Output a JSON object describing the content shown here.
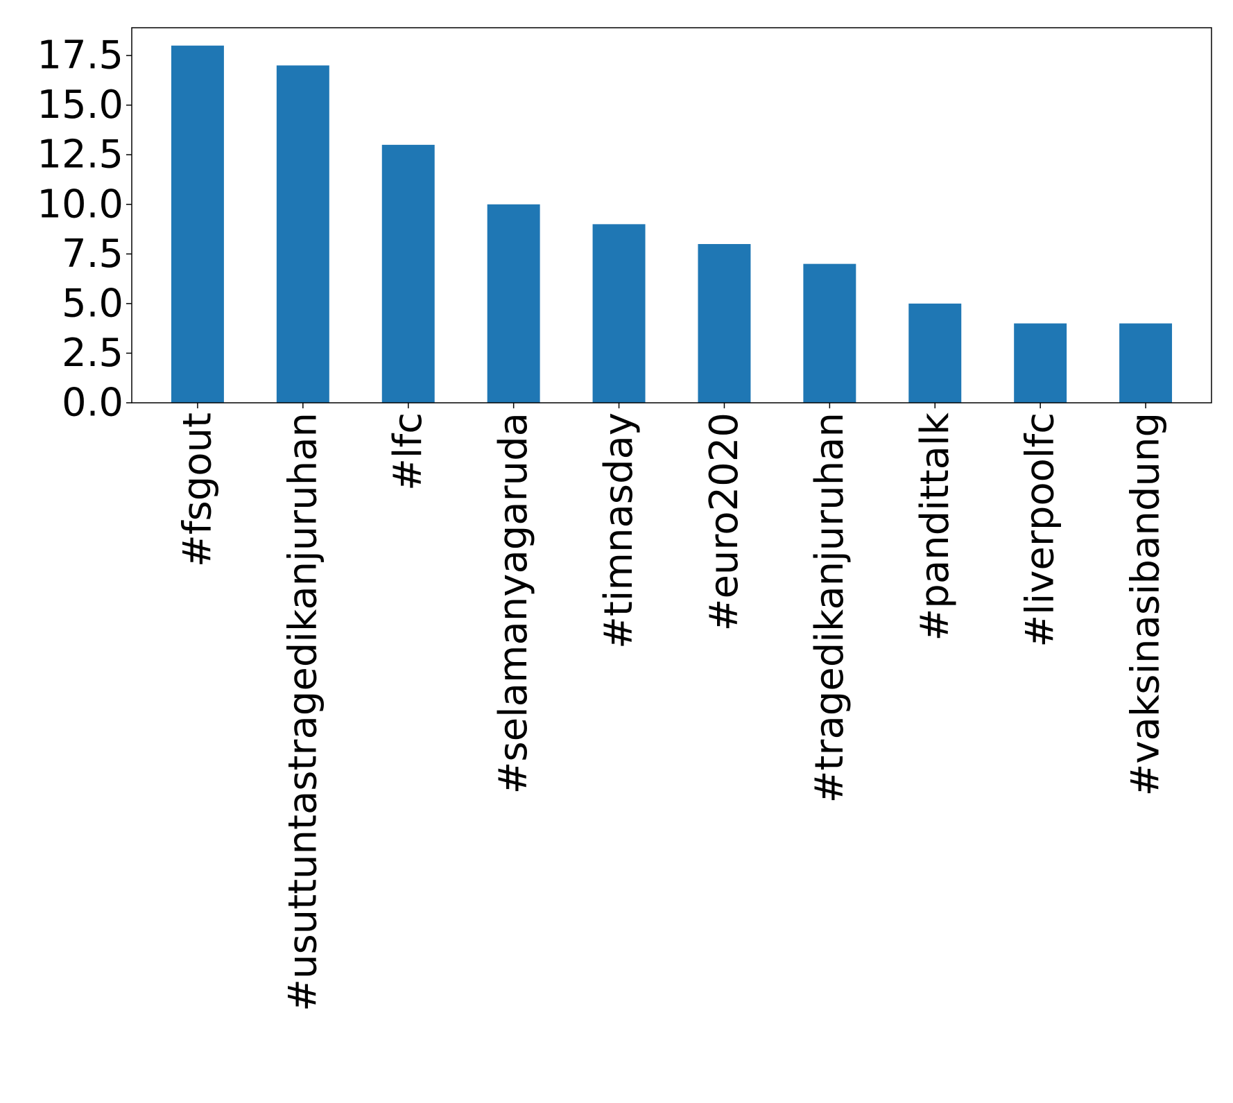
{
  "chart_data": {
    "type": "bar",
    "title": "",
    "xlabel": "",
    "ylabel": "",
    "categories": [
      "#fsgout",
      "#usuttuntastragedikanjuruhan",
      "#lfc",
      "#selamanyagaruda",
      "#timnasday",
      "#euro2020",
      "#tragedikanjuruhan",
      "#pandittalk",
      "#liverpoolfc",
      "#vaksinasibandung"
    ],
    "values": [
      18,
      17,
      13,
      10,
      9,
      8,
      7,
      5,
      4,
      4
    ],
    "ylim": [
      0,
      18.9
    ],
    "yticks": [
      0.0,
      2.5,
      5.0,
      7.5,
      10.0,
      12.5,
      15.0,
      17.5
    ],
    "ytick_labels": [
      "0.0",
      "2.5",
      "5.0",
      "7.5",
      "10.0",
      "12.5",
      "15.0",
      "17.5"
    ],
    "x_tick_rotation": "vertical",
    "grid": false,
    "legend": "none",
    "bar_color": "#1f77b4"
  }
}
